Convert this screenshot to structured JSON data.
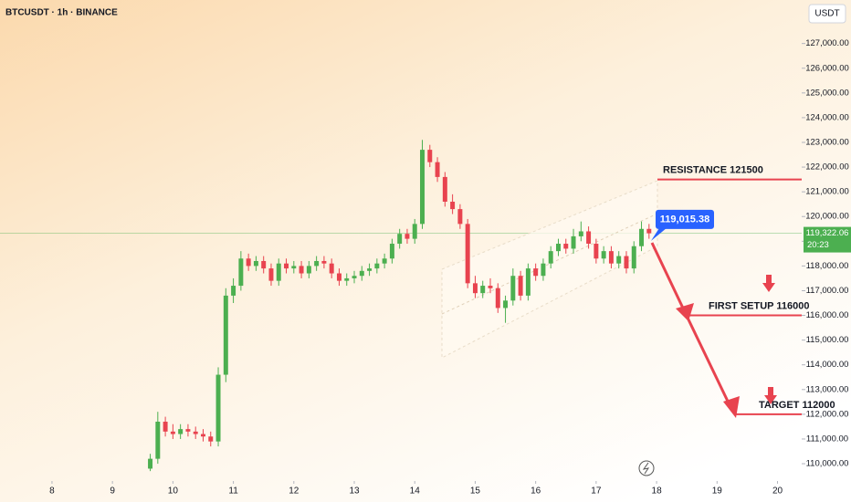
{
  "chart_data": {
    "type": "candlestick",
    "title": "BTCUSDT · 1h · BINANCE",
    "currency": "USDT",
    "up_color": "#4caf50",
    "down_color": "#e8434f",
    "xlim": [
      7.14,
      20.4
    ],
    "xticks": [
      8,
      9,
      10,
      11,
      12,
      13,
      14,
      15,
      16,
      17,
      18,
      19,
      20
    ],
    "ylim": [
      109300,
      128760
    ],
    "yticks": [
      {
        "value": 110000,
        "label": "110,000.00"
      },
      {
        "value": 111000,
        "label": "111,000.00"
      },
      {
        "value": 112000,
        "label": "112,000.00"
      },
      {
        "value": 113000,
        "label": "113,000.00"
      },
      {
        "value": 114000,
        "label": "114,000.00"
      },
      {
        "value": 115000,
        "label": "115,000.00"
      },
      {
        "value": 116000,
        "label": "116,000.00"
      },
      {
        "value": 117000,
        "label": "117,000.00"
      },
      {
        "value": 118000,
        "label": "118,000.00"
      },
      {
        "value": 119000,
        "label": "119,000.00"
      },
      {
        "value": 120000,
        "label": "120,000.00"
      },
      {
        "value": 121000,
        "label": "121,000.00"
      },
      {
        "value": 122000,
        "label": "122,000.00"
      },
      {
        "value": 123000,
        "label": "123,000.00"
      },
      {
        "value": 124000,
        "label": "124,000.00"
      },
      {
        "value": 125000,
        "label": "125,000.00"
      },
      {
        "value": 126000,
        "label": "126,000.00"
      },
      {
        "value": 127000,
        "label": "127,000.00"
      }
    ],
    "x": [
      9.625,
      9.75,
      9.875,
      10.0,
      10.125,
      10.25,
      10.375,
      10.5,
      10.625,
      10.75,
      10.875,
      11.0,
      11.125,
      11.25,
      11.375,
      11.5,
      11.625,
      11.75,
      11.875,
      12.0,
      12.125,
      12.25,
      12.375,
      12.5,
      12.625,
      12.75,
      12.875,
      13.0,
      13.125,
      13.25,
      13.375,
      13.5,
      13.625,
      13.75,
      13.875,
      14.0,
      14.125,
      14.25,
      14.375,
      14.5,
      14.625,
      14.75,
      14.875,
      15.0,
      15.125,
      15.25,
      15.375,
      15.5,
      15.625,
      15.75,
      15.875,
      16.0,
      16.125,
      16.25,
      16.375,
      16.5,
      16.625,
      16.75,
      16.875,
      17.0,
      17.125,
      17.25,
      17.375,
      17.5,
      17.625,
      17.75,
      17.875
    ],
    "open": [
      109800,
      110200,
      111700,
      111300,
      111200,
      111400,
      111300,
      111200,
      111100,
      110900,
      113600,
      116800,
      117200,
      118300,
      118000,
      118200,
      117900,
      117400,
      118100,
      117900,
      118000,
      117700,
      118000,
      118200,
      118100,
      117700,
      117400,
      117500,
      117600,
      117800,
      117900,
      118100,
      118300,
      118900,
      119300,
      119100,
      119700,
      122700,
      122200,
      121600,
      120600,
      120300,
      119700,
      117300,
      116900,
      117200,
      117100,
      116300,
      116600,
      117600,
      116800,
      117900,
      117600,
      118100,
      118600,
      118900,
      118700,
      119200,
      119400,
      118900,
      118300,
      118600,
      118100,
      118400,
      117900,
      118800,
      119500
    ],
    "high": [
      110400,
      112100,
      111900,
      111600,
      111600,
      111600,
      111500,
      111400,
      111300,
      113900,
      117100,
      117500,
      118600,
      118500,
      118400,
      118400,
      118100,
      118300,
      118300,
      118200,
      118200,
      118200,
      118400,
      118400,
      118300,
      117900,
      117700,
      117800,
      118000,
      118100,
      118300,
      118500,
      119100,
      119500,
      119500,
      119900,
      123100,
      122900,
      122400,
      121800,
      120900,
      120500,
      119900,
      117600,
      117400,
      117500,
      117300,
      116800,
      117900,
      117800,
      118100,
      118100,
      118300,
      118800,
      119100,
      119100,
      119500,
      119800,
      119600,
      119100,
      118800,
      118800,
      118600,
      118600,
      119000,
      119800,
      119700
    ],
    "low": [
      109700,
      110000,
      111100,
      111000,
      111000,
      111100,
      111000,
      110900,
      110700,
      110700,
      113300,
      116500,
      117000,
      117800,
      117800,
      117700,
      117200,
      117200,
      117700,
      117700,
      117500,
      117500,
      117800,
      117900,
      117500,
      117200,
      117200,
      117300,
      117400,
      117600,
      117700,
      117900,
      118100,
      118700,
      118900,
      118900,
      119500,
      122000,
      121400,
      120400,
      120100,
      119500,
      117100,
      116700,
      116700,
      116900,
      116100,
      115700,
      116400,
      116600,
      116600,
      117400,
      117400,
      117900,
      118400,
      118500,
      118500,
      119000,
      118700,
      118100,
      118100,
      117900,
      117900,
      117700,
      117700,
      118600,
      119100
    ],
    "close": [
      110200,
      111700,
      111300,
      111200,
      111400,
      111300,
      111200,
      111100,
      110900,
      113600,
      116800,
      117200,
      118300,
      118000,
      118200,
      117900,
      117400,
      118100,
      117900,
      118000,
      117700,
      118000,
      118200,
      118100,
      117700,
      117400,
      117500,
      117600,
      117800,
      117900,
      118100,
      118300,
      118900,
      119300,
      119100,
      119700,
      122700,
      122200,
      121600,
      120600,
      120300,
      119700,
      117300,
      116900,
      117200,
      117100,
      116300,
      116600,
      117600,
      116800,
      117900,
      117600,
      118100,
      118600,
      118900,
      118700,
      119200,
      119400,
      118900,
      118300,
      118600,
      118100,
      118400,
      117900,
      118800,
      119500,
      119322
    ],
    "annotations": [
      {
        "text": "RESISTANCE  121500",
        "value": 121500
      },
      {
        "text": "FIRST SETUP 116000",
        "value": 116000
      },
      {
        "text": "TARGET 112000",
        "value": 112000
      }
    ],
    "marker": {
      "value": 119015.38,
      "label": "119,015.38"
    },
    "last_price": {
      "value": 119322.06,
      "label": "119,322.06"
    },
    "countdown": "20:23"
  }
}
